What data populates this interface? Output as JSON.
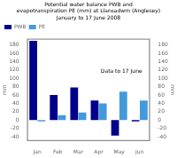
{
  "chart_data": {
    "type": "bar",
    "title": "Potential water balance PWB and\nevapotranspiration PE (mm) at Llansadwm (Anglesey)\nJanuary to 17 June 2008",
    "categories": [
      "Jan",
      "Feb",
      "Mar",
      "Apr",
      "May",
      "Jun"
    ],
    "series": [
      {
        "name": "PWB",
        "color": "#00008B",
        "values": [
          190,
          60,
          78,
          47,
          -37,
          -3
        ]
      },
      {
        "name": "PE",
        "color": "#4499DD",
        "values": [
          -3,
          12,
          18,
          40,
          68,
          47
        ]
      }
    ],
    "ylabel": "mm",
    "y2label": "mm",
    "ylim": [
      -50,
      195
    ],
    "yticks": [
      -40,
      -20,
      0,
      20,
      40,
      60,
      80,
      100,
      120,
      140,
      160,
      180
    ],
    "y2lim": [
      -50,
      195
    ],
    "y2ticks": [
      -40,
      -20,
      0,
      20,
      40,
      60,
      80,
      100,
      120,
      140,
      160,
      180
    ],
    "annotation": "Data to 17 June",
    "legend": "upper left",
    "grid": false
  }
}
